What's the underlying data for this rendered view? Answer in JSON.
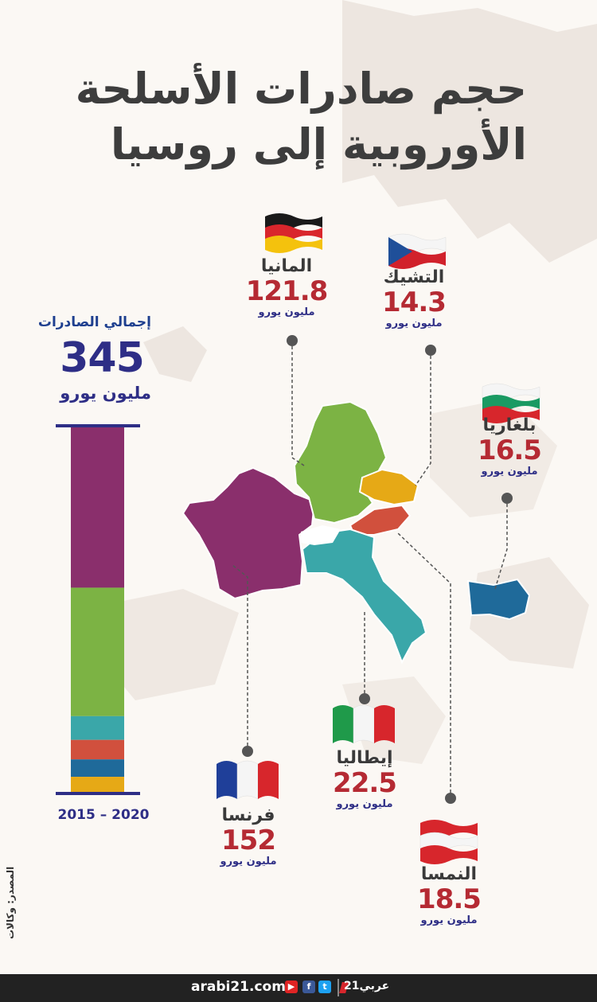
{
  "title": {
    "line1": "حجم صادرات الأسلحة",
    "line2": "الأوروبية إلى روسيا"
  },
  "total": {
    "label": "إجمالي الصادرات",
    "value": "345",
    "unit": "مليون يورو",
    "years": "2015 – 2020"
  },
  "countries": [
    {
      "name": "فرنسا",
      "value": "152",
      "unit": "مليون يورو",
      "flag": "france-flag",
      "color": "#8a2f6c"
    },
    {
      "name": "المانيا",
      "value": "121.8",
      "unit": "مليون يورو",
      "flag": "germany-flag",
      "color": "#7cb344"
    },
    {
      "name": "إيطاليا",
      "value": "22.5",
      "unit": "مليون يورو",
      "flag": "italy-flag",
      "color": "#3aa7a9"
    },
    {
      "name": "النمسا",
      "value": "18.5",
      "unit": "مليون يورو",
      "flag": "austria-flag",
      "color": "#d1503d"
    },
    {
      "name": "بلغاريا",
      "value": "16.5",
      "unit": "مليون يورو",
      "flag": "bulgaria-flag",
      "color": "#1f6a9a"
    },
    {
      "name": "التشيك",
      "value": "14.3",
      "unit": "مليون يورو",
      "flag": "czech-flag",
      "color": "#e6a916"
    }
  ],
  "chart_data": {
    "type": "bar",
    "categories": [
      "فرنسا",
      "المانيا",
      "إيطاليا",
      "النمسا",
      "بلغاريا",
      "التشيك"
    ],
    "values": [
      152,
      121.8,
      22.5,
      18.5,
      16.5,
      14.3
    ],
    "total": 345,
    "unit": "مليون يورو",
    "colors": [
      "#8a2f6c",
      "#7cb344",
      "#3aa7a9",
      "#d1503d",
      "#1f6a9a",
      "#e6a916"
    ]
  },
  "source": "المصدر: وكالات",
  "footer": {
    "site": "arabi21.com",
    "brand": "عربي21",
    "icons": [
      "youtube-icon",
      "facebook-icon",
      "twitter-icon"
    ]
  }
}
